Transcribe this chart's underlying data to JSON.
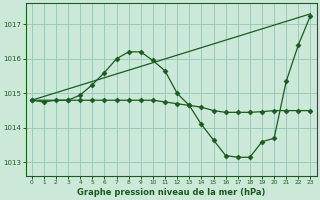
{
  "bg_color": "#cce8d8",
  "grid_color": "#99ccbb",
  "line_color": "#1a5c20",
  "marker_color": "#1a5c20",
  "xlabel": "Graphe pression niveau de la mer (hPa)",
  "xlabel_color": "#1a5c20",
  "tick_color": "#1a5c20",
  "xlim": [
    -0.5,
    23.5
  ],
  "ylim": [
    1012.6,
    1017.6
  ],
  "yticks": [
    1013,
    1014,
    1015,
    1016,
    1017
  ],
  "xticks": [
    0,
    1,
    2,
    3,
    4,
    5,
    6,
    7,
    8,
    9,
    10,
    11,
    12,
    13,
    14,
    15,
    16,
    17,
    18,
    19,
    20,
    21,
    22,
    23
  ],
  "series": [
    {
      "x": [
        0,
        1,
        2,
        3,
        4,
        5,
        6,
        7,
        8,
        9,
        10,
        11,
        12,
        13,
        14,
        15,
        16,
        17,
        18,
        19,
        20,
        21,
        22,
        23
      ],
      "y": [
        1014.8,
        1014.75,
        1014.8,
        1014.8,
        1014.8,
        1014.8,
        1014.8,
        1014.8,
        1014.8,
        1014.8,
        1014.8,
        1014.75,
        1014.7,
        1014.65,
        1014.6,
        1014.5,
        1014.45,
        1014.45,
        1014.45,
        1014.47,
        1014.5,
        1014.5,
        1014.5,
        1014.5
      ]
    },
    {
      "x": [
        0,
        23
      ],
      "y": [
        1014.8,
        1017.3
      ]
    },
    {
      "x": [
        0,
        3,
        4,
        5,
        6,
        7,
        8,
        9,
        10,
        11,
        12,
        13,
        14,
        15,
        16,
        17,
        18,
        19,
        20,
        21,
        22,
        23
      ],
      "y": [
        1014.8,
        1014.8,
        1014.95,
        1015.25,
        1015.6,
        1016.0,
        1016.2,
        1016.2,
        1015.95,
        1015.65,
        1015.0,
        1014.65,
        1014.1,
        1013.65,
        1013.2,
        1013.15,
        1013.15,
        1013.6,
        1013.7,
        1015.35,
        1016.4,
        1017.25
      ]
    }
  ]
}
